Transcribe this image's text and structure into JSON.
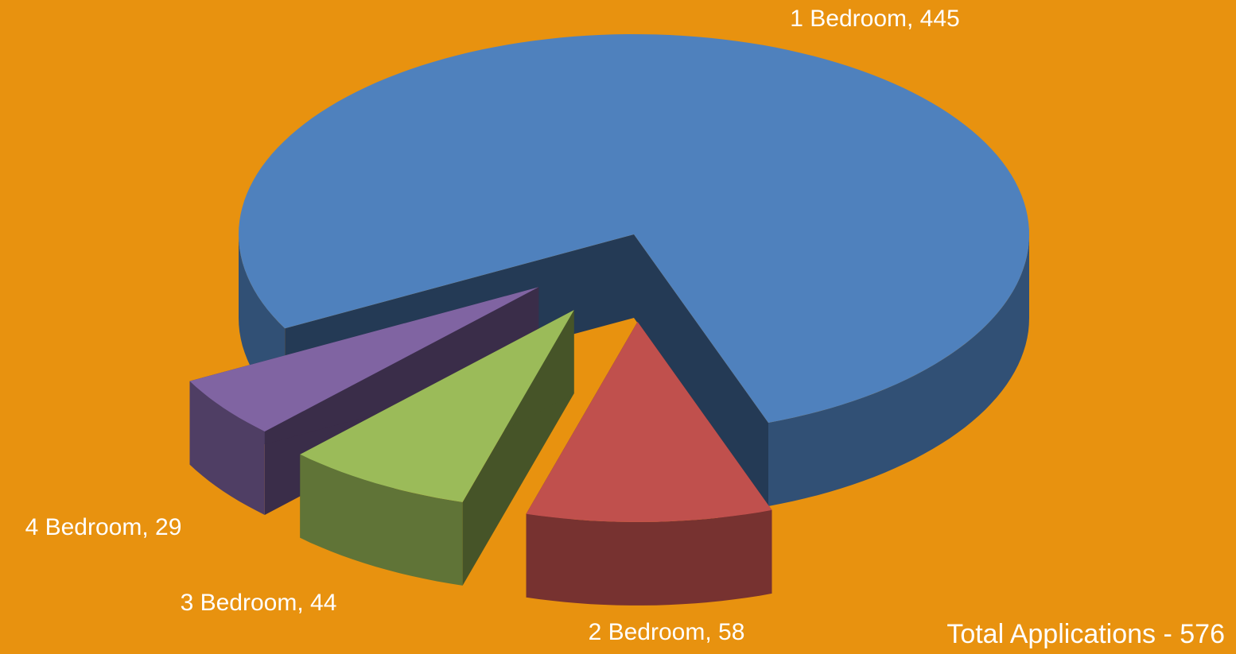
{
  "chart_data": {
    "type": "pie",
    "values": [
      445,
      58,
      44,
      29
    ],
    "value_labels": [
      "1 Bedroom, 445",
      "2 Bedroom, 58",
      "3 Bedroom, 44",
      "4 Bedroom, 29"
    ],
    "colors": [
      "#4f81bd",
      "#c0504d",
      "#9bbb59",
      "#8064a2"
    ],
    "annotation": "Total Applications  - 576",
    "background": "#e8920f"
  }
}
